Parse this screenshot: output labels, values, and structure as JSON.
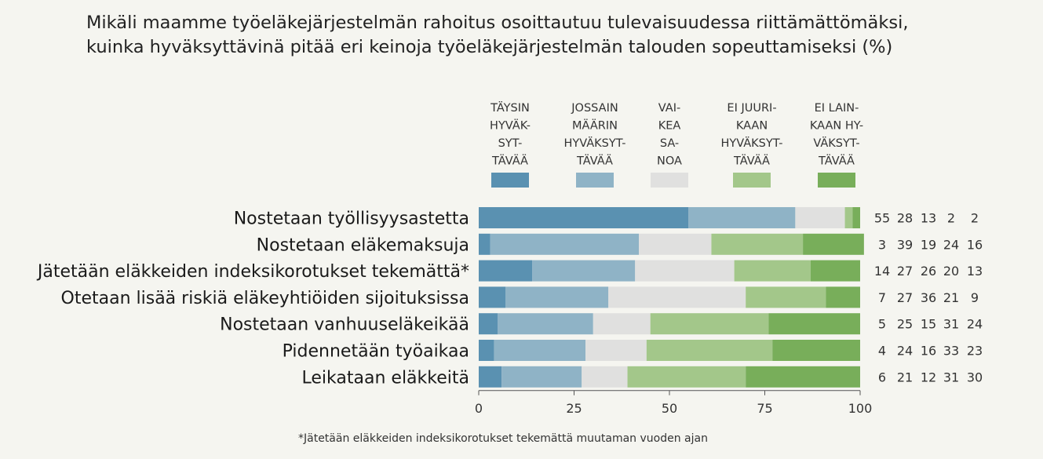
{
  "chart_data": {
    "type": "bar",
    "orientation": "horizontal",
    "stacked": true,
    "title": [
      "Mikäli maamme työeläkejärjestelmän rahoitus osoittautuu tulevaisuudessa riittämättömäksi,",
      "kuinka hyväksyttävinä pitää eri keinoja työeläkejärjestelmän talouden sopeuttamiseksi (%)"
    ],
    "categories": [
      "Nostetaan työllisyysastetta",
      "Nostetaan eläkemaksuja",
      "Jätetään eläkkeiden indeksikorotukset tekemättä*",
      "Otetaan lisää riskiä eläkeyhtiöiden sijoituksissa",
      "Nostetaan vanhuuseläkeikää",
      "Pidennetään työaikaa",
      "Leikataan eläkkeitä"
    ],
    "series": [
      {
        "name": "TÄYSIN HYVÄKSYTTÄVÄÄ",
        "legend_lines": [
          "TÄYSIN",
          "HYVÄK-",
          "SYT-",
          "TÄVÄÄ"
        ],
        "color": "#5a91b1",
        "values": [
          55,
          3,
          14,
          7,
          5,
          4,
          6
        ]
      },
      {
        "name": "JOSSAIN MÄÄRIN HYVÄKSYTTÄVÄÄ",
        "legend_lines": [
          "JOSSAIN",
          "MÄÄRIN",
          "HYVÄKSYT-",
          "TÄVÄÄ"
        ],
        "color": "#8fb3c6",
        "values": [
          28,
          39,
          27,
          27,
          25,
          24,
          21
        ]
      },
      {
        "name": "VAIKEA SANOA",
        "legend_lines": [
          "VAI-",
          "KEA",
          "SA-",
          "NOA"
        ],
        "color": "#e0e0df",
        "values": [
          13,
          19,
          26,
          36,
          15,
          16,
          12
        ]
      },
      {
        "name": "EI JUURIKAAN HYVÄKSYTTÄVÄÄ",
        "legend_lines": [
          "EI JUURI-",
          "KAAN",
          "HYVÄKSYT-",
          "TÄVÄÄ"
        ],
        "color": "#a3c78a",
        "values": [
          2,
          24,
          20,
          21,
          31,
          33,
          31
        ]
      },
      {
        "name": "EI LAINKAAN HYVÄKSYTTÄVÄÄ",
        "legend_lines": [
          "EI LAIN-",
          "KAAN HY-",
          "VÄKSYT-",
          "TÄVÄÄ"
        ],
        "color": "#78ae5a",
        "values": [
          2,
          16,
          13,
          9,
          24,
          23,
          30
        ]
      }
    ],
    "xlim": [
      0,
      100
    ],
    "xticks": [
      0,
      25,
      50,
      75,
      100
    ],
    "footnote": "*Jätetään eläkkeiden indeksikorotukset tekemättä muutaman vuoden ajan"
  }
}
